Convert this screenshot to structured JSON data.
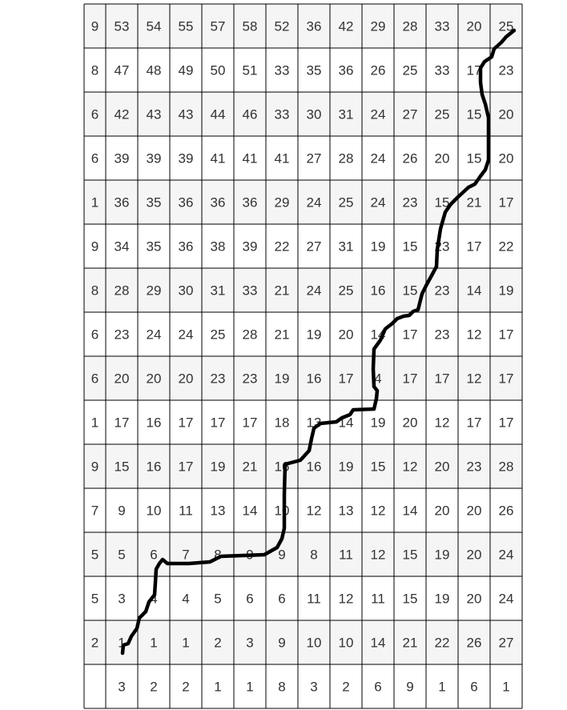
{
  "grid": {
    "rows": [
      [
        "9",
        "53",
        "54",
        "55",
        "57",
        "58",
        "52",
        "36",
        "42",
        "29",
        "28",
        "33",
        "20",
        "25"
      ],
      [
        "8",
        "47",
        "48",
        "49",
        "50",
        "51",
        "33",
        "35",
        "36",
        "26",
        "25",
        "33",
        "17",
        "23"
      ],
      [
        "6",
        "42",
        "43",
        "43",
        "44",
        "46",
        "33",
        "30",
        "31",
        "24",
        "27",
        "25",
        "15",
        "20"
      ],
      [
        "6",
        "39",
        "39",
        "39",
        "41",
        "41",
        "41",
        "27",
        "28",
        "24",
        "26",
        "20",
        "15",
        "20"
      ],
      [
        "1",
        "36",
        "35",
        "36",
        "36",
        "36",
        "29",
        "24",
        "25",
        "24",
        "23",
        "15",
        "21",
        "17"
      ],
      [
        "9",
        "34",
        "35",
        "36",
        "38",
        "39",
        "22",
        "27",
        "31",
        "19",
        "15",
        "23",
        "17",
        "22"
      ],
      [
        "8",
        "28",
        "29",
        "30",
        "31",
        "33",
        "21",
        "24",
        "25",
        "16",
        "15",
        "23",
        "14",
        "19"
      ],
      [
        "6",
        "23",
        "24",
        "24",
        "25",
        "28",
        "21",
        "19",
        "20",
        "14",
        "17",
        "23",
        "12",
        "17"
      ],
      [
        "6",
        "20",
        "20",
        "20",
        "23",
        "23",
        "19",
        "16",
        "17",
        "4",
        "17",
        "17",
        "12",
        "17"
      ],
      [
        "1",
        "17",
        "16",
        "17",
        "17",
        "17",
        "18",
        "13",
        "14",
        "19",
        "20",
        "12",
        "17",
        "17"
      ],
      [
        "9",
        "15",
        "16",
        "17",
        "19",
        "21",
        "16",
        "16",
        "19",
        "15",
        "12",
        "20",
        "23",
        "28"
      ],
      [
        "7",
        "9",
        "10",
        "11",
        "13",
        "14",
        "10",
        "12",
        "13",
        "12",
        "14",
        "20",
        "20",
        "26"
      ],
      [
        "5",
        "5",
        "6",
        "7",
        "8",
        "9",
        "9",
        "8",
        "11",
        "12",
        "15",
        "19",
        "20",
        "24"
      ],
      [
        "5",
        "3",
        "4",
        "4",
        "5",
        "6",
        "6",
        "11",
        "12",
        "11",
        "15",
        "19",
        "20",
        "24"
      ],
      [
        "2",
        "1",
        "1",
        "1",
        "2",
        "3",
        "9",
        "10",
        "10",
        "14",
        "21",
        "22",
        "26",
        "27"
      ],
      [
        "",
        "3",
        "2",
        "2",
        "1",
        "1",
        "8",
        "3",
        "2",
        "6",
        "9",
        "1",
        "6",
        "1"
      ]
    ],
    "colors": {
      "shaded_row": "#f5f5f5",
      "plain_row": "#ffffff",
      "grid_line": "#000000",
      "text": "#333333",
      "path": "#000000"
    }
  }
}
